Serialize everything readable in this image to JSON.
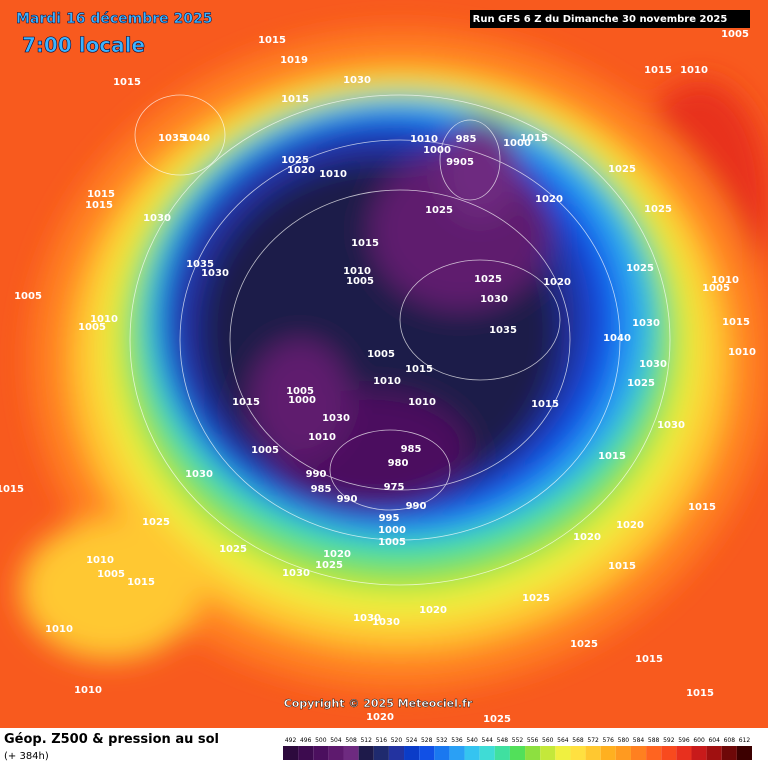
{
  "header": {
    "date": "Mardi 16 décembre 2025",
    "time": "7:00 locale",
    "run": "Run GFS 6 Z du Dimanche 30 novembre 2025"
  },
  "map": {
    "pressure_labels": [
      1015,
      1019,
      1015,
      1030,
      1005,
      1015,
      1010,
      1015,
      1035,
      1040,
      1010,
      985,
      1000,
      9905,
      1000,
      1015,
      1025,
      1020,
      1010,
      1025,
      1015,
      1015,
      1030,
      1020,
      1025,
      1025,
      1015,
      1035,
      1030,
      1010,
      1005,
      1025,
      1020,
      1025,
      1010,
      1005,
      1005,
      1030,
      1010,
      1005,
      1035,
      1030,
      1015,
      1040,
      1010,
      1005,
      1030,
      1010,
      1015,
      1025,
      1005,
      1015,
      1000,
      1010,
      1015,
      1030,
      1030,
      1010,
      985,
      1005,
      980,
      1015,
      990,
      975,
      985,
      990,
      990,
      995,
      1030,
      1015,
      1015,
      1025,
      1000,
      1005,
      1020,
      1020,
      1025,
      1020,
      1025,
      1010,
      1005,
      1015,
      1030,
      1015,
      1025,
      1020,
      1030,
      1030,
      1025,
      1010,
      1015,
      1010,
      1015,
      1020,
      1025
    ]
  },
  "copyright": "Copyright © 2025 Meteociel.fr",
  "footer": {
    "title": "Géop. Z500 & pression au sol",
    "lead": "(+ 384h)"
  },
  "colorbar": {
    "levels": [
      492,
      496,
      500,
      504,
      508,
      512,
      516,
      520,
      524,
      528,
      532,
      536,
      540,
      544,
      548,
      552,
      556,
      560,
      564,
      568,
      572,
      576,
      580,
      584,
      588,
      592,
      596,
      600,
      604,
      608,
      612
    ],
    "colors": [
      "#2d0a3d",
      "#3d0b4f",
      "#4b0f5e",
      "#5e1a6e",
      "#6e2a80",
      "#1e1a4a",
      "#1f2a6e",
      "#2333a0",
      "#0b3cc8",
      "#1150e6",
      "#1a78f0",
      "#2aa0f5",
      "#35c4f0",
      "#3fdcd6",
      "#40e0a0",
      "#52e05a",
      "#8de040",
      "#c4e83a",
      "#f0f040",
      "#ffe040",
      "#ffc830",
      "#ffb020",
      "#ff9a20",
      "#ff8020",
      "#ff6420",
      "#f84a1e",
      "#e8301e",
      "#c81a1a",
      "#a01010",
      "#6e0808",
      "#3c0000"
    ]
  }
}
